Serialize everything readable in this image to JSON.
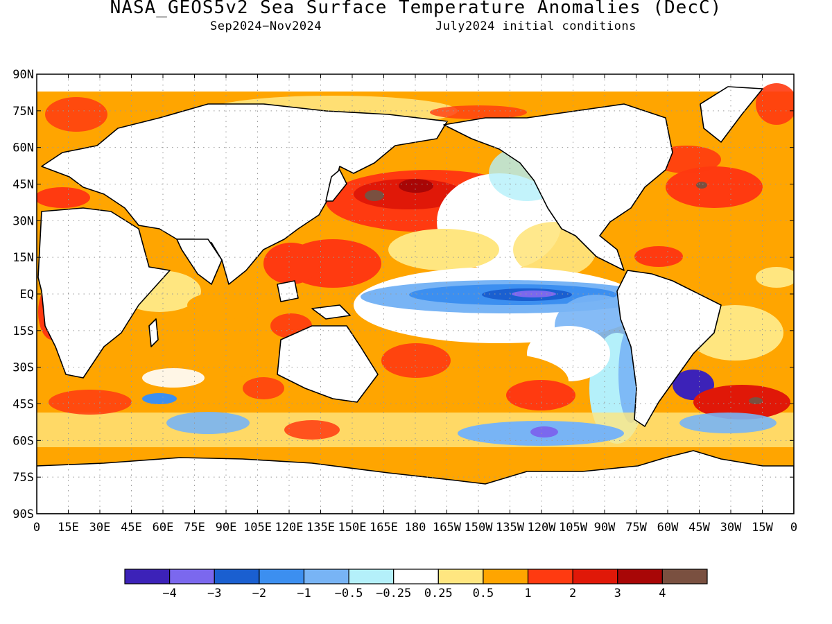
{
  "title": "NASA_GEOS5v2 Sea Surface Temperature Anomalies (DecC)",
  "subtitle_left": "Sep2024−Nov2024",
  "subtitle_right": "July2024 initial conditions",
  "lat_labels": [
    "90N",
    "75N",
    "60N",
    "45N",
    "30N",
    "15N",
    "EQ",
    "15S",
    "30S",
    "45S",
    "60S",
    "75S",
    "90S"
  ],
  "lon_labels": [
    "0",
    "15E",
    "30E",
    "45E",
    "60E",
    "75E",
    "90E",
    "105E",
    "120E",
    "135E",
    "150E",
    "165E",
    "180",
    "165W",
    "150W",
    "135W",
    "120W",
    "105W",
    "90W",
    "75W",
    "60W",
    "45W",
    "30W",
    "15W",
    "0"
  ],
  "colorbar": {
    "colors": [
      "#3c22b8",
      "#7b68ee",
      "#1a5fd0",
      "#3c8ff0",
      "#78b4f5",
      "#b4f0fa",
      "#ffffff",
      "#ffe680",
      "#ffa500",
      "#ff3a10",
      "#e01808",
      "#a80606",
      "#7a5040"
    ],
    "labels": [
      "−4",
      "−3",
      "−2",
      "−1",
      "−0.5",
      "−0.25",
      "0.25",
      "0.5",
      "1",
      "2",
      "3",
      "4"
    ]
  },
  "palette": {
    "land": "#ffffff",
    "coast": "#000000",
    "grid": "#9a9a9a"
  }
}
